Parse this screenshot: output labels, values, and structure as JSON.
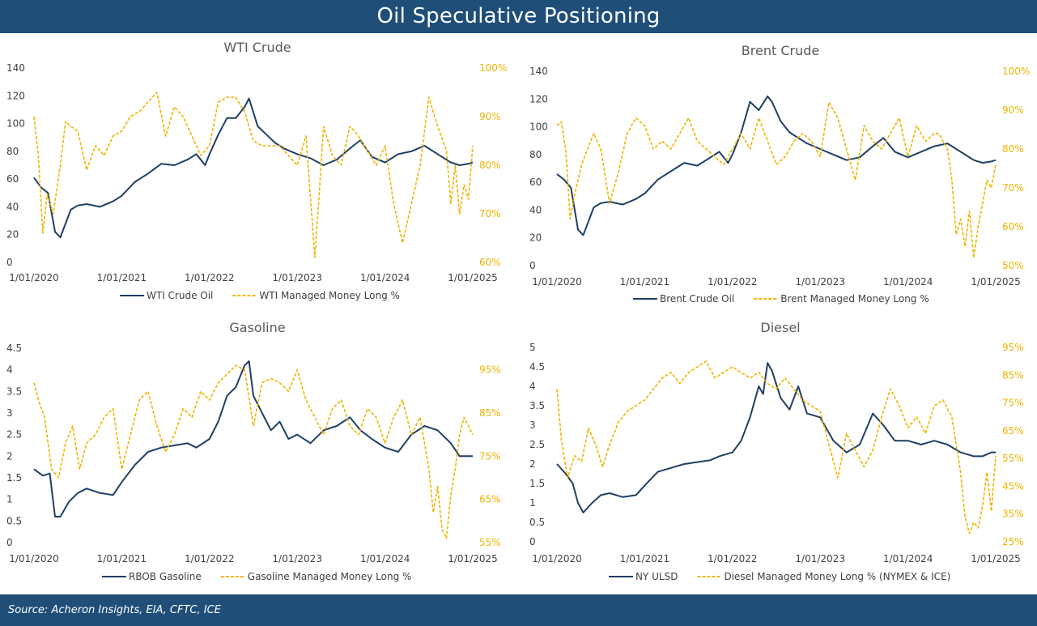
{
  "page": {
    "title": "Oil Speculative Positioning",
    "source": "Source: Acheron Insights, EIA, CFTC, ICE"
  },
  "colors": {
    "header_bg": "#1f4e79",
    "price_line": "#1f3f66",
    "positioning_line": "#f0b400"
  },
  "chart_data": [
    {
      "type": "line",
      "title": "WTI Crude",
      "x_ticks": [
        "1/01/2020",
        "1/01/2021",
        "1/01/2022",
        "1/01/2023",
        "1/01/2024",
        "1/01/2025"
      ],
      "y_left": {
        "ticks": [
          "0",
          "20",
          "40",
          "60",
          "80",
          "100",
          "120",
          "140"
        ],
        "lim": [
          0,
          140
        ]
      },
      "y_right": {
        "ticks": [
          "60%",
          "70%",
          "80%",
          "90%",
          "100%"
        ],
        "lim": [
          60,
          100
        ]
      },
      "series": [
        {
          "name": "WTI Crude Oil",
          "axis": "left",
          "style": "solid",
          "x": [
            2020.0,
            2020.08,
            2020.16,
            2020.24,
            2020.3,
            2020.36,
            2020.42,
            2020.5,
            2020.6,
            2020.75,
            2020.9,
            2021.0,
            2021.15,
            2021.3,
            2021.45,
            2021.6,
            2021.75,
            2021.85,
            2021.95,
            2022.0,
            2022.1,
            2022.2,
            2022.3,
            2022.4,
            2022.45,
            2022.55,
            2022.65,
            2022.75,
            2022.85,
            2023.0,
            2023.15,
            2023.3,
            2023.45,
            2023.6,
            2023.72,
            2023.85,
            2024.0,
            2024.15,
            2024.3,
            2024.45,
            2024.6,
            2024.75,
            2024.85,
            2024.95,
            2025.0
          ],
          "y": [
            61,
            54,
            50,
            22,
            18,
            28,
            38,
            41,
            42,
            40,
            44,
            48,
            58,
            64,
            71,
            70,
            74,
            78,
            70,
            78,
            92,
            104,
            104,
            112,
            118,
            98,
            92,
            86,
            82,
            78,
            75,
            70,
            74,
            82,
            88,
            76,
            72,
            78,
            80,
            84,
            78,
            72,
            70,
            71,
            72
          ]
        },
        {
          "name": "WTI Managed Money Long %",
          "axis": "right",
          "style": "dashed",
          "x": [
            2020.0,
            2020.05,
            2020.1,
            2020.15,
            2020.22,
            2020.3,
            2020.36,
            2020.42,
            2020.5,
            2020.6,
            2020.7,
            2020.8,
            2020.9,
            2021.0,
            2021.1,
            2021.2,
            2021.3,
            2021.4,
            2021.5,
            2021.6,
            2021.7,
            2021.8,
            2021.9,
            2022.0,
            2022.1,
            2022.2,
            2022.3,
            2022.4,
            2022.5,
            2022.6,
            2022.7,
            2022.8,
            2022.9,
            2023.0,
            2023.1,
            2023.2,
            2023.25,
            2023.3,
            2023.4,
            2023.5,
            2023.6,
            2023.7,
            2023.8,
            2023.9,
            2024.0,
            2024.1,
            2024.2,
            2024.3,
            2024.4,
            2024.5,
            2024.6,
            2024.7,
            2024.75,
            2024.8,
            2024.85,
            2024.9,
            2024.95,
            2025.0
          ],
          "y": [
            90,
            82,
            66,
            74,
            70,
            80,
            89,
            88,
            87,
            79,
            84,
            82,
            86,
            87,
            90,
            91,
            93,
            95,
            86,
            92,
            90,
            86,
            82,
            84,
            93,
            94,
            94,
            91,
            85,
            84,
            84,
            84,
            82,
            80,
            86,
            61,
            74,
            88,
            82,
            80,
            88,
            86,
            83,
            80,
            84,
            72,
            64,
            72,
            80,
            94,
            88,
            83,
            72,
            80,
            70,
            76,
            73,
            84
          ]
        }
      ]
    },
    {
      "type": "line",
      "title": "Brent Crude",
      "x_ticks": [
        "1/01/2020",
        "1/01/2021",
        "1/01/2022",
        "1/01/2023",
        "1/01/2024",
        "1/01/2025"
      ],
      "y_left": {
        "ticks": [
          "0",
          "20",
          "40",
          "60",
          "80",
          "100",
          "120",
          "140"
        ],
        "lim": [
          0,
          140
        ]
      },
      "y_right": {
        "ticks": [
          "50%",
          "60%",
          "70%",
          "80%",
          "90%",
          "100%"
        ],
        "lim": [
          50,
          100
        ]
      },
      "series": [
        {
          "name": "Brent Crude Oil",
          "axis": "left",
          "style": "solid",
          "x": [
            2020.0,
            2020.08,
            2020.16,
            2020.24,
            2020.3,
            2020.36,
            2020.42,
            2020.5,
            2020.6,
            2020.75,
            2020.9,
            2021.0,
            2021.15,
            2021.3,
            2021.45,
            2021.6,
            2021.75,
            2021.85,
            2021.95,
            2022.0,
            2022.1,
            2022.2,
            2022.3,
            2022.4,
            2022.45,
            2022.55,
            2022.65,
            2022.75,
            2022.85,
            2023.0,
            2023.15,
            2023.3,
            2023.45,
            2023.6,
            2023.72,
            2023.85,
            2024.0,
            2024.15,
            2024.3,
            2024.45,
            2024.6,
            2024.75,
            2024.85,
            2024.95,
            2025.0
          ],
          "y": [
            66,
            62,
            56,
            26,
            22,
            32,
            42,
            45,
            46,
            44,
            48,
            52,
            62,
            68,
            74,
            72,
            78,
            82,
            74,
            80,
            96,
            118,
            112,
            122,
            118,
            104,
            96,
            92,
            88,
            84,
            80,
            76,
            78,
            86,
            92,
            82,
            78,
            82,
            86,
            88,
            82,
            76,
            74,
            75,
            76
          ]
        },
        {
          "name": "Brent Managed Money Long %",
          "axis": "right",
          "style": "dashed",
          "x": [
            2020.0,
            2020.05,
            2020.1,
            2020.15,
            2020.2,
            2020.28,
            2020.35,
            2020.42,
            2020.5,
            2020.6,
            2020.7,
            2020.8,
            2020.9,
            2021.0,
            2021.1,
            2021.2,
            2021.3,
            2021.4,
            2021.5,
            2021.6,
            2021.7,
            2021.8,
            2021.9,
            2022.0,
            2022.1,
            2022.2,
            2022.3,
            2022.4,
            2022.5,
            2022.6,
            2022.7,
            2022.8,
            2022.9,
            2023.0,
            2023.1,
            2023.2,
            2023.3,
            2023.4,
            2023.5,
            2023.6,
            2023.7,
            2023.8,
            2023.9,
            2024.0,
            2024.1,
            2024.2,
            2024.3,
            2024.35,
            2024.45,
            2024.5,
            2024.55,
            2024.6,
            2024.65,
            2024.7,
            2024.75,
            2024.8,
            2024.85,
            2024.9,
            2024.95,
            2025.0
          ],
          "y": [
            86,
            87,
            80,
            62,
            68,
            76,
            80,
            84,
            80,
            66,
            74,
            84,
            88,
            86,
            80,
            82,
            80,
            84,
            88,
            82,
            80,
            78,
            76,
            80,
            84,
            80,
            88,
            82,
            76,
            78,
            82,
            84,
            82,
            78,
            92,
            88,
            80,
            72,
            86,
            82,
            80,
            84,
            88,
            78,
            86,
            82,
            84,
            84,
            80,
            72,
            58,
            62,
            55,
            64,
            52,
            60,
            66,
            72,
            70,
            76
          ]
        }
      ]
    },
    {
      "type": "line",
      "title": "Gasoline",
      "x_ticks": [
        "1/01/2020",
        "1/01/2021",
        "1/01/2022",
        "1/01/2023",
        "1/01/2024",
        "1/01/2025"
      ],
      "y_left": {
        "ticks": [
          "0",
          "0.5",
          "1",
          "1.5",
          "2",
          "2.5",
          "3",
          "3.5",
          "4",
          "4.5"
        ],
        "lim": [
          0,
          4.5
        ]
      },
      "y_right": {
        "ticks": [
          "55%",
          "65%",
          "75%",
          "85%",
          "95%"
        ],
        "lim": [
          55,
          100
        ]
      },
      "series": [
        {
          "name": "RBOB Gasoline",
          "axis": "left",
          "style": "solid",
          "x": [
            2020.0,
            2020.1,
            2020.18,
            2020.24,
            2020.3,
            2020.4,
            2020.5,
            2020.6,
            2020.75,
            2020.9,
            2021.0,
            2021.15,
            2021.3,
            2021.45,
            2021.6,
            2021.75,
            2021.85,
            2022.0,
            2022.1,
            2022.2,
            2022.3,
            2022.4,
            2022.45,
            2022.5,
            2022.6,
            2022.7,
            2022.8,
            2022.9,
            2023.0,
            2023.15,
            2023.3,
            2023.45,
            2023.6,
            2023.72,
            2023.85,
            2024.0,
            2024.15,
            2024.3,
            2024.45,
            2024.6,
            2024.75,
            2024.85,
            2024.95,
            2025.0
          ],
          "y": [
            1.7,
            1.55,
            1.6,
            0.6,
            0.6,
            0.95,
            1.15,
            1.25,
            1.15,
            1.1,
            1.4,
            1.8,
            2.1,
            2.2,
            2.25,
            2.3,
            2.2,
            2.4,
            2.8,
            3.4,
            3.6,
            4.1,
            4.2,
            3.4,
            3.0,
            2.6,
            2.8,
            2.4,
            2.5,
            2.3,
            2.6,
            2.7,
            2.9,
            2.6,
            2.4,
            2.2,
            2.1,
            2.5,
            2.7,
            2.6,
            2.3,
            2.0,
            2.0,
            2.0
          ]
        },
        {
          "name": "Gasoline Managed Money Long %",
          "axis": "right",
          "style": "dashed",
          "x": [
            2020.0,
            2020.05,
            2020.12,
            2020.2,
            2020.28,
            2020.36,
            2020.44,
            2020.52,
            2020.6,
            2020.7,
            2020.8,
            2020.9,
            2021.0,
            2021.1,
            2021.2,
            2021.3,
            2021.4,
            2021.5,
            2021.6,
            2021.7,
            2021.8,
            2021.9,
            2022.0,
            2022.1,
            2022.2,
            2022.3,
            2022.4,
            2022.5,
            2022.6,
            2022.7,
            2022.8,
            2022.9,
            2023.0,
            2023.1,
            2023.2,
            2023.3,
            2023.4,
            2023.5,
            2023.6,
            2023.7,
            2023.8,
            2023.9,
            2024.0,
            2024.1,
            2024.2,
            2024.3,
            2024.4,
            2024.5,
            2024.55,
            2024.6,
            2024.65,
            2024.7,
            2024.75,
            2024.8,
            2024.85,
            2024.9,
            2024.95,
            2025.0
          ],
          "y": [
            92,
            88,
            84,
            72,
            70,
            78,
            82,
            72,
            78,
            80,
            84,
            86,
            72,
            80,
            88,
            90,
            82,
            76,
            80,
            86,
            84,
            90,
            88,
            92,
            94,
            96,
            95,
            82,
            92,
            93,
            92,
            90,
            95,
            88,
            84,
            80,
            86,
            88,
            82,
            80,
            86,
            84,
            78,
            84,
            88,
            80,
            84,
            72,
            62,
            68,
            58,
            56,
            66,
            72,
            80,
            84,
            82,
            80
          ]
        }
      ]
    },
    {
      "type": "line",
      "title": "Diesel",
      "x_ticks": [
        "1/01/2020",
        "1/01/2021",
        "1/01/2022",
        "1/01/2023",
        "1/01/2024",
        "1/01/2025"
      ],
      "y_left": {
        "ticks": [
          "0",
          "0.5",
          "1",
          "1.5",
          "2",
          "2.5",
          "3",
          "3.5",
          "4",
          "4.5",
          "5"
        ],
        "lim": [
          0,
          5
        ]
      },
      "y_right": {
        "ticks": [
          "25%",
          "35%",
          "45%",
          "55%",
          "65%",
          "75%",
          "85%",
          "95%"
        ],
        "lim": [
          25,
          95
        ]
      },
      "series": [
        {
          "name": "NY ULSD",
          "axis": "left",
          "style": "solid",
          "x": [
            2020.0,
            2020.1,
            2020.18,
            2020.24,
            2020.3,
            2020.4,
            2020.5,
            2020.6,
            2020.75,
            2020.9,
            2021.0,
            2021.15,
            2021.3,
            2021.45,
            2021.6,
            2021.75,
            2021.85,
            2022.0,
            2022.1,
            2022.2,
            2022.3,
            2022.35,
            2022.4,
            2022.45,
            2022.55,
            2022.65,
            2022.75,
            2022.85,
            2023.0,
            2023.15,
            2023.3,
            2023.45,
            2023.6,
            2023.72,
            2023.85,
            2024.0,
            2024.15,
            2024.3,
            2024.45,
            2024.6,
            2024.75,
            2024.85,
            2024.95,
            2025.0
          ],
          "y": [
            2.0,
            1.75,
            1.5,
            1.0,
            0.75,
            1.0,
            1.2,
            1.25,
            1.15,
            1.2,
            1.45,
            1.8,
            1.9,
            2.0,
            2.05,
            2.1,
            2.2,
            2.3,
            2.6,
            3.2,
            4.0,
            3.8,
            4.6,
            4.4,
            3.7,
            3.4,
            4.0,
            3.3,
            3.2,
            2.6,
            2.3,
            2.5,
            3.3,
            3.0,
            2.6,
            2.6,
            2.5,
            2.6,
            2.5,
            2.3,
            2.2,
            2.2,
            2.3,
            2.3
          ]
        },
        {
          "name": "Diesel Managed Money Long % (NYMEX & ICE)",
          "axis": "right",
          "style": "dashed",
          "x": [
            2020.0,
            2020.05,
            2020.12,
            2020.2,
            2020.28,
            2020.36,
            2020.44,
            2020.52,
            2020.6,
            2020.7,
            2020.8,
            2020.9,
            2021.0,
            2021.1,
            2021.2,
            2021.3,
            2021.4,
            2021.5,
            2021.6,
            2021.7,
            2021.8,
            2021.9,
            2022.0,
            2022.1,
            2022.2,
            2022.3,
            2022.4,
            2022.5,
            2022.6,
            2022.7,
            2022.8,
            2022.9,
            2023.0,
            2023.1,
            2023.2,
            2023.3,
            2023.4,
            2023.5,
            2023.6,
            2023.7,
            2023.8,
            2023.9,
            2024.0,
            2024.1,
            2024.2,
            2024.3,
            2024.4,
            2024.5,
            2024.55,
            2024.6,
            2024.65,
            2024.7,
            2024.75,
            2024.8,
            2024.85,
            2024.9,
            2024.95,
            2025.0
          ],
          "y": [
            80,
            62,
            48,
            56,
            54,
            66,
            60,
            52,
            60,
            68,
            72,
            74,
            76,
            80,
            84,
            86,
            82,
            86,
            88,
            90,
            84,
            86,
            88,
            86,
            84,
            86,
            82,
            80,
            84,
            80,
            76,
            74,
            72,
            60,
            48,
            64,
            58,
            52,
            58,
            70,
            80,
            74,
            66,
            70,
            64,
            74,
            76,
            70,
            60,
            50,
            34,
            28,
            32,
            30,
            38,
            50,
            36,
            56
          ]
        }
      ]
    }
  ]
}
